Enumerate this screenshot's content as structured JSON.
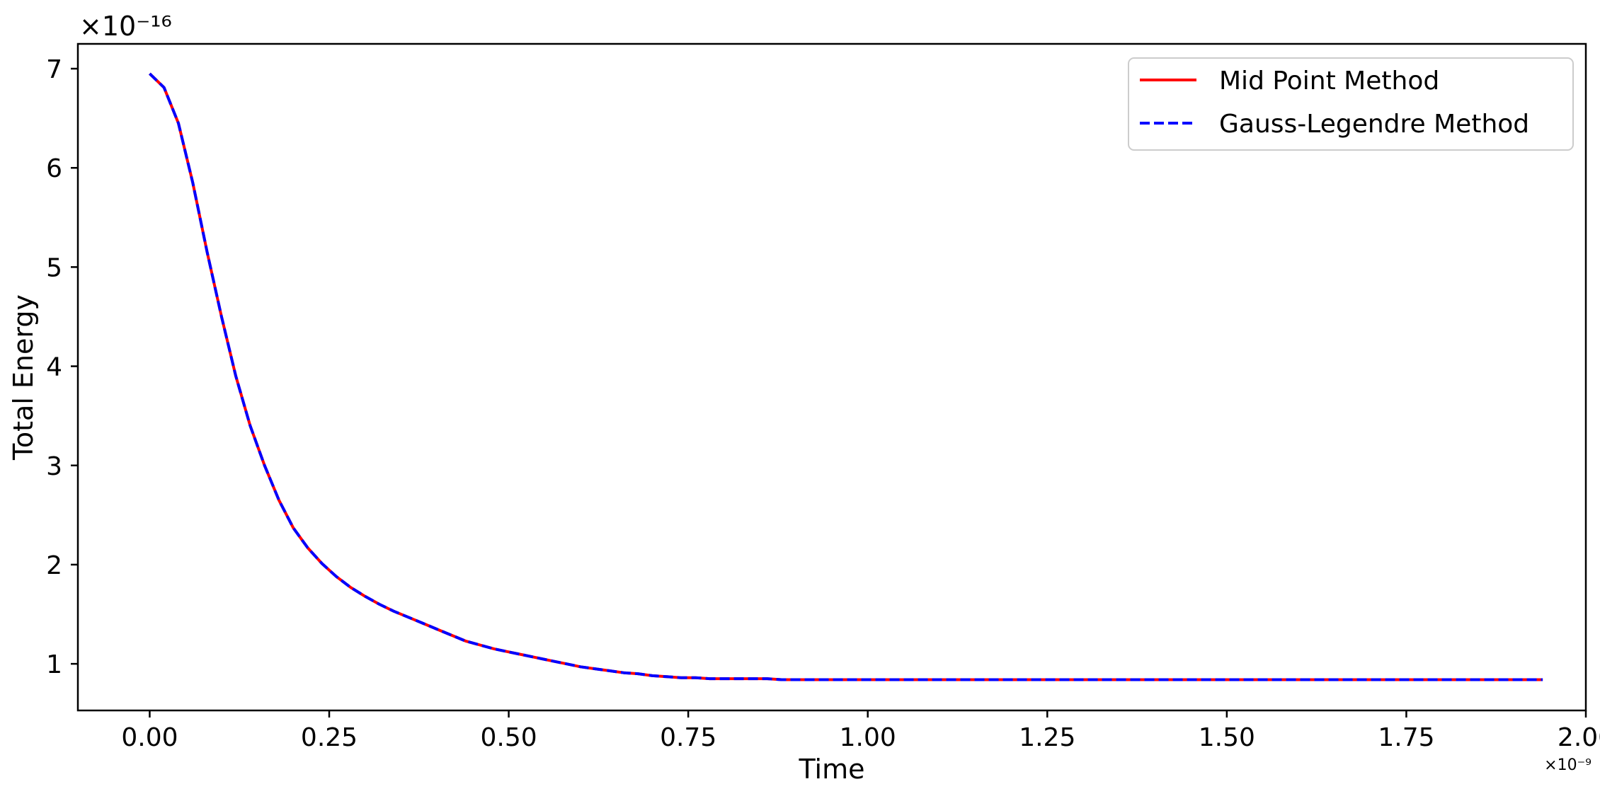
{
  "chart_data": {
    "type": "line",
    "title": "",
    "xlabel": "Time",
    "ylabel": "Total Energy",
    "x_offset_label": "×10⁻⁹",
    "y_offset_label": "×10⁻¹⁶",
    "xlim": [
      -0.1,
      2.0
    ],
    "ylim": [
      0.53,
      7.25
    ],
    "x_ticks": [
      0.0,
      0.25,
      0.5,
      0.75,
      1.0,
      1.25,
      1.5,
      1.75,
      2.0
    ],
    "x_tick_labels": [
      "0.00",
      "0.25",
      "0.50",
      "0.75",
      "1.00",
      "1.25",
      "1.50",
      "1.75",
      "2.00"
    ],
    "y_ticks": [
      1,
      2,
      3,
      4,
      5,
      6,
      7
    ],
    "y_tick_labels": [
      "1",
      "2",
      "3",
      "4",
      "5",
      "6",
      "7"
    ],
    "grid": false,
    "legend": "top-right",
    "x": [
      0.0,
      0.02,
      0.04,
      0.06,
      0.08,
      0.1,
      0.12,
      0.14,
      0.16,
      0.18,
      0.2,
      0.22,
      0.24,
      0.26,
      0.28,
      0.3,
      0.32,
      0.34,
      0.36,
      0.38,
      0.4,
      0.42,
      0.44,
      0.46,
      0.48,
      0.5,
      0.52,
      0.54,
      0.56,
      0.58,
      0.6,
      0.62,
      0.64,
      0.66,
      0.68,
      0.7,
      0.72,
      0.74,
      0.76,
      0.78,
      0.8,
      0.82,
      0.84,
      0.86,
      0.88,
      0.9,
      0.95,
      1.0,
      1.1,
      1.2,
      1.3,
      1.4,
      1.5,
      1.6,
      1.7,
      1.8,
      1.9,
      1.94
    ],
    "series": [
      {
        "name": "Mid Point Method",
        "color": "#ff0000",
        "style": "solid",
        "values": [
          6.95,
          6.81,
          6.45,
          5.85,
          5.15,
          4.5,
          3.9,
          3.4,
          3.0,
          2.65,
          2.37,
          2.17,
          2.01,
          1.88,
          1.77,
          1.68,
          1.6,
          1.53,
          1.47,
          1.41,
          1.35,
          1.29,
          1.23,
          1.19,
          1.15,
          1.12,
          1.09,
          1.06,
          1.03,
          1.0,
          0.97,
          0.95,
          0.93,
          0.91,
          0.9,
          0.88,
          0.87,
          0.86,
          0.86,
          0.85,
          0.85,
          0.85,
          0.85,
          0.85,
          0.84,
          0.84,
          0.84,
          0.84,
          0.84,
          0.84,
          0.84,
          0.84,
          0.84,
          0.84,
          0.84,
          0.84,
          0.84,
          0.84
        ]
      },
      {
        "name": "Gauss-Legendre Method",
        "color": "#0000ff",
        "style": "dashed",
        "values": [
          6.95,
          6.81,
          6.45,
          5.85,
          5.15,
          4.5,
          3.9,
          3.4,
          3.0,
          2.65,
          2.37,
          2.17,
          2.01,
          1.88,
          1.77,
          1.68,
          1.6,
          1.53,
          1.47,
          1.41,
          1.35,
          1.29,
          1.23,
          1.19,
          1.15,
          1.12,
          1.09,
          1.06,
          1.03,
          1.0,
          0.97,
          0.95,
          0.93,
          0.91,
          0.9,
          0.88,
          0.87,
          0.86,
          0.86,
          0.85,
          0.85,
          0.85,
          0.85,
          0.85,
          0.84,
          0.84,
          0.84,
          0.84,
          0.84,
          0.84,
          0.84,
          0.84,
          0.84,
          0.84,
          0.84,
          0.84,
          0.84,
          0.84
        ]
      }
    ]
  }
}
